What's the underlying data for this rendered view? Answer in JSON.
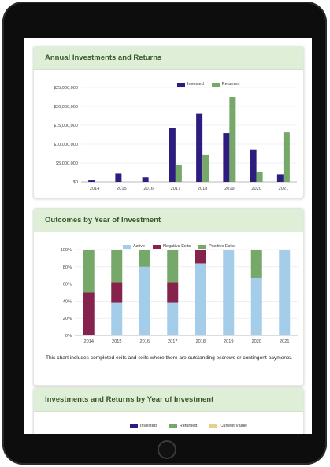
{
  "cards": {
    "annual": {
      "title": "Annual Investments and Returns"
    },
    "outcomes": {
      "title": "Outcomes by Year of Investment",
      "note": "This chart includes completed exits and exits where there are outstanding escrows or contingent payments."
    },
    "byyear": {
      "title": "Investments and Returns by Year of Investment"
    }
  },
  "colors": {
    "invested": "#2e1d7f",
    "returned": "#76a86a",
    "active": "#a4cdea",
    "negative": "#86234d",
    "positive": "#76a86a",
    "current": "#e2d28a"
  },
  "chart_data": [
    {
      "type": "bar",
      "categories": [
        "2014",
        "2015",
        "2016",
        "2017",
        "2018",
        "2019",
        "2020",
        "2021"
      ],
      "series": [
        {
          "name": "Invested",
          "values": [
            400000,
            2200000,
            1200000,
            14300000,
            18000000,
            12900000,
            8600000,
            2000000
          ]
        },
        {
          "name": "Returned",
          "values": [
            0,
            0,
            0,
            4400000,
            7100000,
            22500000,
            2500000,
            13100000
          ]
        }
      ],
      "yticks": [
        "$0",
        "$5,000,000",
        "$10,000,000",
        "$15,000,000",
        "$20,000,000",
        "$25,000,000"
      ],
      "ylim": [
        0,
        25000000
      ],
      "legend": "top-right"
    },
    {
      "type": "bar",
      "stacked": true,
      "categories": [
        "2014",
        "2015",
        "2016",
        "2017",
        "2018",
        "2019",
        "2020",
        "2021"
      ],
      "series": [
        {
          "name": "Active",
          "values": [
            0,
            38,
            80,
            38,
            84,
            100,
            67,
            100
          ]
        },
        {
          "name": "Negative Exits",
          "values": [
            50,
            24,
            0,
            24,
            16,
            0,
            0,
            0
          ]
        },
        {
          "name": "Positive Exits",
          "values": [
            50,
            38,
            20,
            38,
            0,
            0,
            33,
            0
          ]
        }
      ],
      "yticks": [
        "0%",
        "20%",
        "40%",
        "60%",
        "80%",
        "100%"
      ],
      "ylim": [
        0,
        100
      ],
      "legend": "top"
    },
    {
      "type": "bar",
      "series": [
        {
          "name": "Invested"
        },
        {
          "name": "Returned"
        },
        {
          "name": "Current Value"
        }
      ],
      "legend": "top"
    }
  ]
}
